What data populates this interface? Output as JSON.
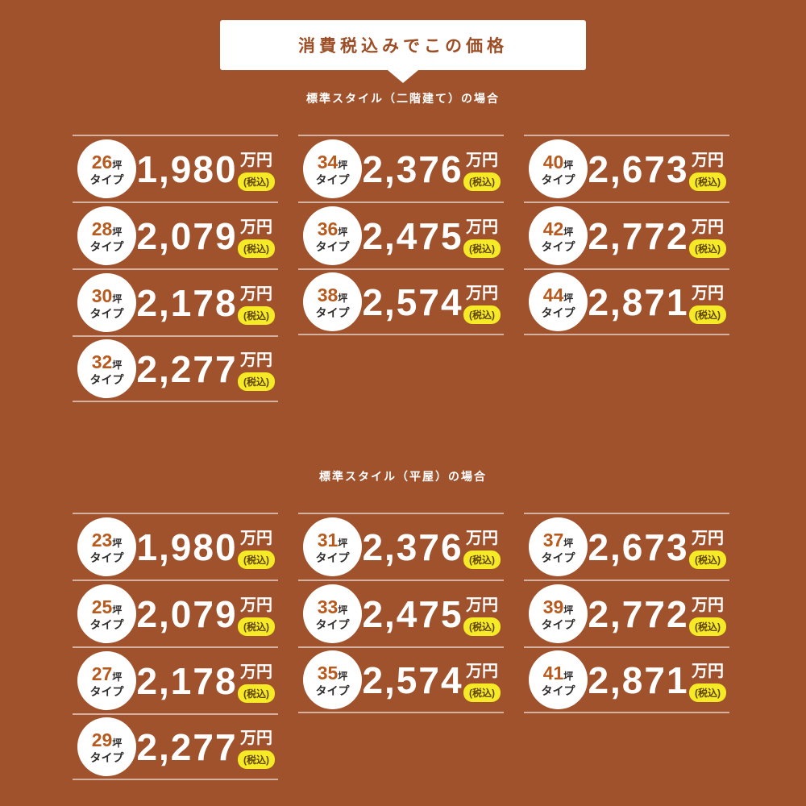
{
  "banner": {
    "label": "消費税込みでこの価格"
  },
  "shared": {
    "tsubo_suffix": "坪",
    "type_label": "タイプ",
    "unit_label": "万円",
    "tax_badge_label": "(税込)"
  },
  "sections": [
    {
      "title": "標準スタイル（二階建て）の場合",
      "columns": [
        [
          {
            "tsubo": "26",
            "price": "1,980"
          },
          {
            "tsubo": "28",
            "price": "2,079"
          },
          {
            "tsubo": "30",
            "price": "2,178"
          },
          {
            "tsubo": "32",
            "price": "2,277"
          }
        ],
        [
          {
            "tsubo": "34",
            "price": "2,376"
          },
          {
            "tsubo": "36",
            "price": "2,475"
          },
          {
            "tsubo": "38",
            "price": "2,574"
          }
        ],
        [
          {
            "tsubo": "40",
            "price": "2,673"
          },
          {
            "tsubo": "42",
            "price": "2,772"
          },
          {
            "tsubo": "44",
            "price": "2,871"
          }
        ]
      ]
    },
    {
      "title": "標準スタイル（平屋）の場合",
      "columns": [
        [
          {
            "tsubo": "23",
            "price": "1,980"
          },
          {
            "tsubo": "25",
            "price": "2,079"
          },
          {
            "tsubo": "27",
            "price": "2,178"
          },
          {
            "tsubo": "29",
            "price": "2,277"
          }
        ],
        [
          {
            "tsubo": "31",
            "price": "2,376"
          },
          {
            "tsubo": "33",
            "price": "2,475"
          },
          {
            "tsubo": "35",
            "price": "2,574"
          }
        ],
        [
          {
            "tsubo": "37",
            "price": "2,673"
          },
          {
            "tsubo": "39",
            "price": "2,772"
          },
          {
            "tsubo": "41",
            "price": "2,871"
          }
        ]
      ]
    }
  ],
  "colors": {
    "background": "#a0522d",
    "banner_bg": "#ffffff",
    "banner_text": "#9c4e26",
    "price_text": "#ffffff",
    "tsubo_number": "#b85a1e",
    "circle_text": "#2f2c2b",
    "badge_bg": "#f6e926",
    "badge_text": "#5f430f",
    "divider": "rgba(255,255,255,0.55)"
  }
}
